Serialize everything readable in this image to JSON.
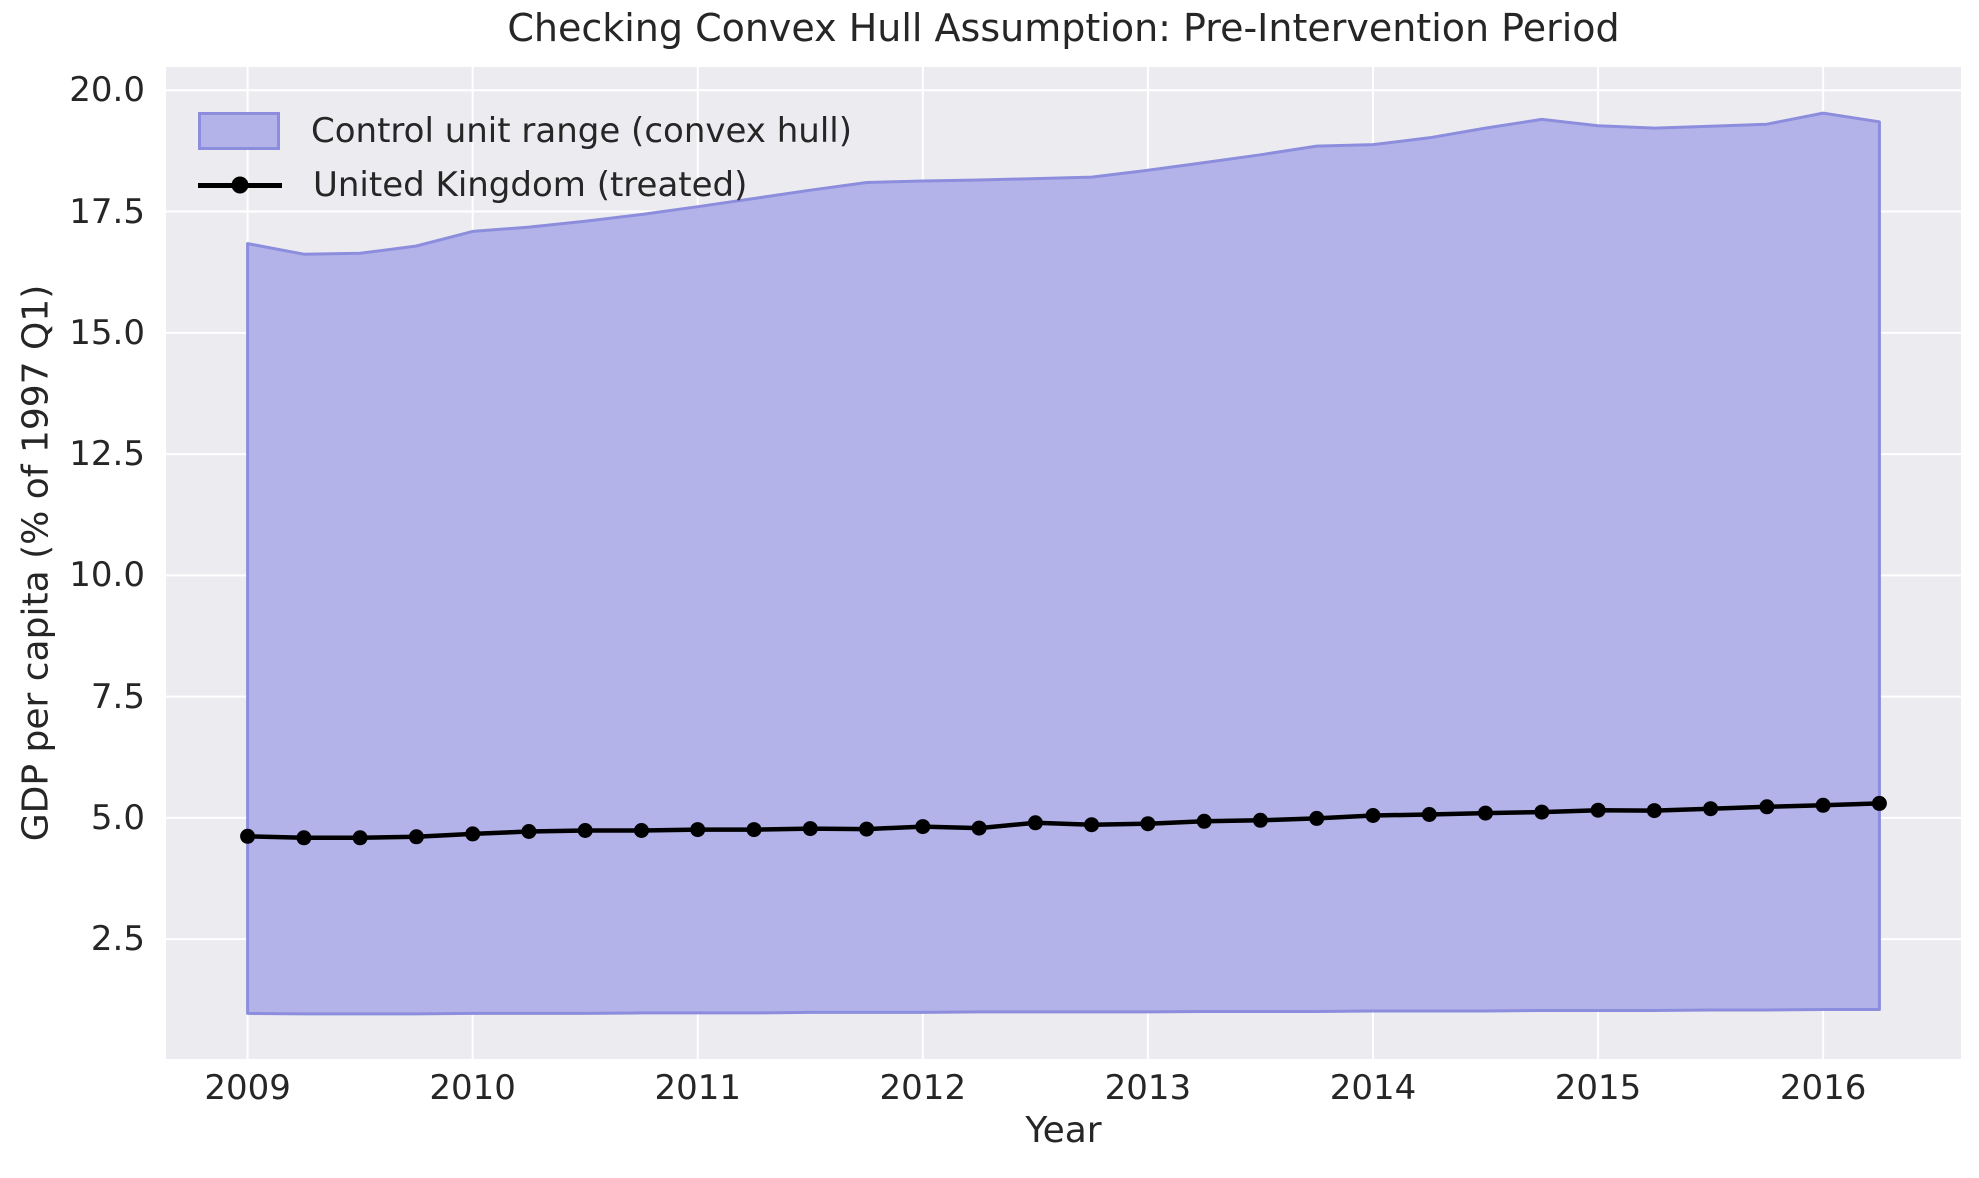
{
  "chart_data": {
    "type": "area",
    "title": "Checking Convex Hull Assumption: Pre-Intervention Period",
    "xlabel": "Year",
    "ylabel": "GDP per capita (% of 1997 Q1)",
    "grid": true,
    "legend_position": "upper left",
    "xlim": [
      2008.6375,
      2016.6125
    ],
    "ylim": [
      0.03,
      20.48
    ],
    "xticks": [
      2009,
      2010,
      2011,
      2012,
      2013,
      2014,
      2015,
      2016
    ],
    "xtick_labels": [
      "2009",
      "2010",
      "2011",
      "2012",
      "2013",
      "2014",
      "2015",
      "2016"
    ],
    "yticks": [
      2.5,
      5.0,
      7.5,
      10.0,
      12.5,
      15.0,
      17.5,
      20.0
    ],
    "ytick_labels": [
      "2.5",
      "5.0",
      "7.5",
      "10.0",
      "12.5",
      "15.0",
      "17.5",
      "20.0"
    ],
    "x": [
      2009.0,
      2009.25,
      2009.5,
      2009.75,
      2010.0,
      2010.25,
      2010.5,
      2010.75,
      2011.0,
      2011.25,
      2011.5,
      2011.75,
      2012.0,
      2012.25,
      2012.5,
      2012.75,
      2013.0,
      2013.25,
      2013.5,
      2013.75,
      2014.0,
      2014.25,
      2014.5,
      2014.75,
      2015.0,
      2015.25,
      2015.5,
      2015.75,
      2016.0,
      2016.25
    ],
    "series": [
      {
        "name": "Control unit range (convex hull)",
        "kind": "band",
        "upper": [
          16.84,
          16.62,
          16.64,
          16.79,
          17.09,
          17.18,
          17.3,
          17.44,
          17.6,
          17.77,
          17.94,
          18.1,
          18.13,
          18.15,
          18.18,
          18.21,
          18.35,
          18.51,
          18.67,
          18.85,
          18.88,
          19.02,
          19.22,
          19.4,
          19.27,
          19.22,
          19.26,
          19.3,
          19.53,
          19.35
        ],
        "lower": [
          0.97,
          0.96,
          0.96,
          0.96,
          0.97,
          0.97,
          0.97,
          0.98,
          0.98,
          0.98,
          0.99,
          0.99,
          0.99,
          1.0,
          1.0,
          1.0,
          1.0,
          1.01,
          1.01,
          1.01,
          1.02,
          1.02,
          1.02,
          1.03,
          1.03,
          1.03,
          1.04,
          1.04,
          1.05,
          1.05
        ],
        "fill_color": "#b3b3e9",
        "edge_color": "#8d8dde"
      },
      {
        "name": "United Kingdom (treated)",
        "kind": "line",
        "values": [
          4.62,
          4.59,
          4.59,
          4.61,
          4.67,
          4.72,
          4.74,
          4.74,
          4.76,
          4.76,
          4.78,
          4.77,
          4.82,
          4.79,
          4.9,
          4.86,
          4.88,
          4.93,
          4.95,
          4.99,
          5.05,
          5.07,
          5.1,
          5.12,
          5.16,
          5.15,
          5.19,
          5.23,
          5.26,
          5.3
        ],
        "color": "#000000",
        "marker": "circle"
      }
    ],
    "colors": {
      "axes_background": "#ececf0",
      "grid": "#ffffff",
      "text": "#262626"
    }
  }
}
